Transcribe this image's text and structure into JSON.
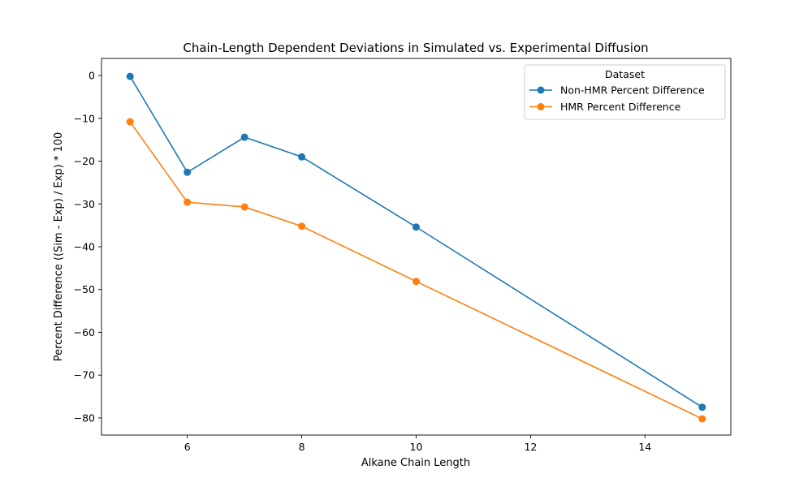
{
  "chart_data": {
    "type": "line",
    "title": "Chain-Length Dependent Deviations in Simulated vs. Experimental Diffusion",
    "xlabel": "Alkane Chain Length",
    "ylabel": "Percent Difference ((Sim - Exp) / Exp) * 100",
    "xlim": [
      4.5,
      15.5
    ],
    "ylim": [
      -84,
      4
    ],
    "xticks": [
      6,
      8,
      10,
      12,
      14
    ],
    "xtick_labels": [
      "6",
      "8",
      "10",
      "12",
      "14"
    ],
    "yticks": [
      0,
      -10,
      -20,
      -30,
      -40,
      -50,
      -60,
      -70,
      -80
    ],
    "ytick_labels": [
      "0",
      "−10",
      "−20",
      "−30",
      "−40",
      "−50",
      "−60",
      "−70",
      "−80"
    ],
    "grid": false,
    "legend": {
      "title": "Dataset",
      "position": "top-right"
    },
    "x": [
      5,
      6,
      7,
      8,
      10,
      15
    ],
    "series": [
      {
        "name": "Non-HMR Percent Difference",
        "color": "#1f77b4",
        "marker": "circle",
        "values": [
          -0.2,
          -22.6,
          -14.4,
          -19.0,
          -35.4,
          -77.5
        ]
      },
      {
        "name": "HMR Percent Difference",
        "color": "#ff7f0e",
        "marker": "circle",
        "values": [
          -10.8,
          -29.6,
          -30.7,
          -35.2,
          -48.1,
          -80.2
        ]
      }
    ]
  }
}
